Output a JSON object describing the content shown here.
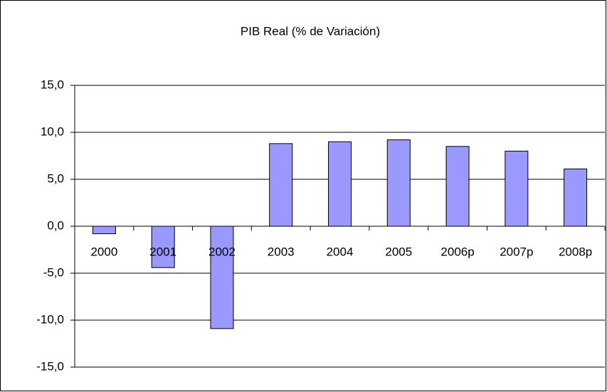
{
  "chart_data": {
    "type": "bar",
    "title": "PIB Real (% de Variación)",
    "categories": [
      "2000",
      "2001",
      "2002",
      "2003",
      "2004",
      "2005",
      "2006p",
      "2007p",
      "2008p"
    ],
    "values": [
      -0.8,
      -4.4,
      -10.9,
      8.8,
      9.0,
      9.2,
      8.5,
      8.0,
      6.1
    ],
    "color": "#9999ff",
    "ylim": [
      -15,
      15
    ],
    "yticks": [
      {
        "value": 15,
        "label": "15,0"
      },
      {
        "value": 10,
        "label": "10,0"
      },
      {
        "value": 5,
        "label": "5,0"
      },
      {
        "value": 0,
        "label": "0,0"
      },
      {
        "value": -5,
        "label": "-5,0"
      },
      {
        "value": -10,
        "label": "-10,0"
      },
      {
        "value": -15,
        "label": "-15,0"
      }
    ],
    "grid": true
  }
}
